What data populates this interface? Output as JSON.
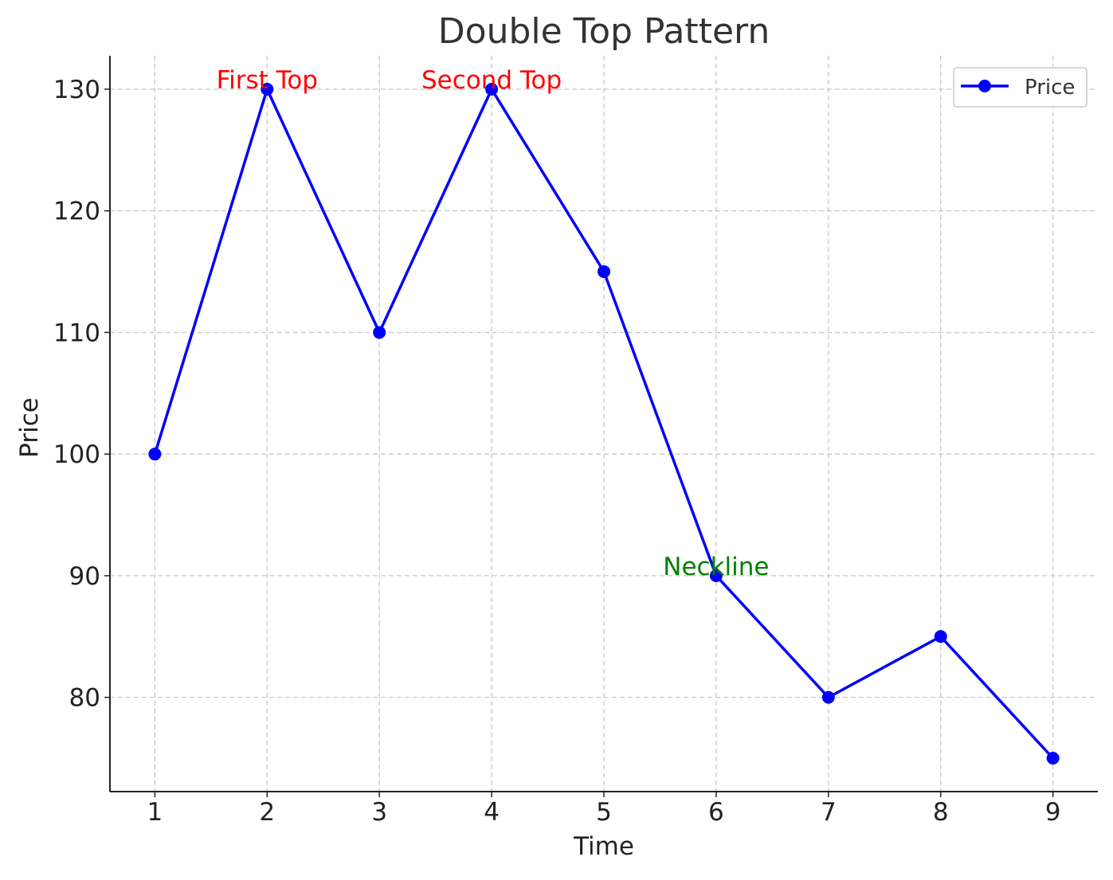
{
  "chart_data": {
    "type": "line",
    "title": "Double Top Pattern",
    "xlabel": "Time",
    "ylabel": "Price",
    "x": [
      1,
      2,
      3,
      4,
      5,
      6,
      7,
      8,
      9
    ],
    "xticks": [
      "1",
      "2",
      "3",
      "4",
      "5",
      "6",
      "7",
      "8",
      "9"
    ],
    "yticks": [
      "80",
      "90",
      "100",
      "110",
      "120",
      "130"
    ],
    "xlim": [
      0.6,
      9.4
    ],
    "ylim": [
      72.25,
      132.75
    ],
    "grid": true,
    "legend_position": "top-right",
    "series": [
      {
        "name": "Price",
        "color": "#0000ff",
        "marker": "circle",
        "values": [
          100,
          130,
          110,
          130,
          115,
          90,
          80,
          85,
          75
        ]
      }
    ],
    "annotations": [
      {
        "text": "First Top",
        "x": 2,
        "y": 130,
        "color": "#ff0000"
      },
      {
        "text": "Second Top",
        "x": 4,
        "y": 130,
        "color": "#ff0000"
      },
      {
        "text": "Neckline",
        "x": 6,
        "y": 90,
        "color": "#008000"
      }
    ]
  }
}
